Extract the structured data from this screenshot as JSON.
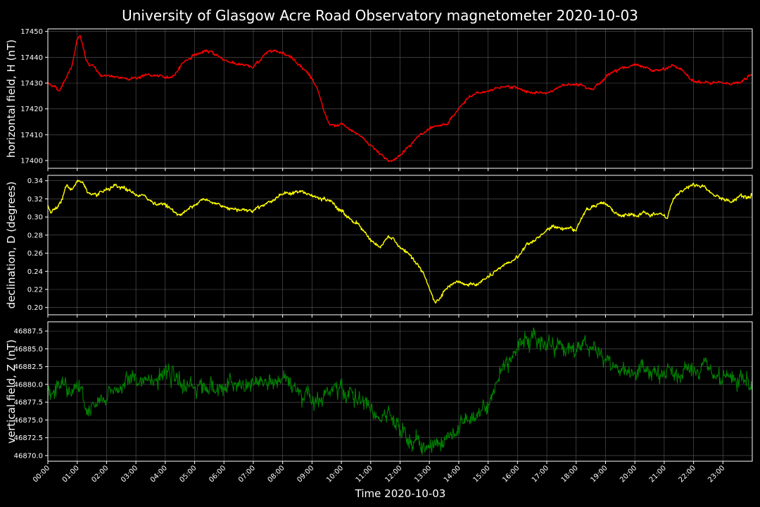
{
  "figure": {
    "title": "University of Glasgow Acre Road Observatory magnetometer 2020-10-03",
    "xlabel": "Time 2020-10-03",
    "background": "#000000",
    "grid_color": "#5a5a5a",
    "axis_color": "#ffffff"
  },
  "chart_data": [
    {
      "type": "line",
      "name": "horizontal-field",
      "ylabel": "horizontal field, H (nT)",
      "color": "#ff0000",
      "ylim": [
        17397,
        17451
      ],
      "yticks": [
        17400,
        17410,
        17420,
        17430,
        17440,
        17450
      ],
      "ytick_labels": [
        "17400",
        "17410",
        "17420",
        "17430",
        "17440",
        "17450"
      ],
      "xlim": [
        0,
        24
      ],
      "grid": true,
      "noise": 0.4,
      "x": [
        0.0,
        0.2,
        0.4,
        0.6,
        0.8,
        1.0,
        1.1,
        1.2,
        1.3,
        1.4,
        1.6,
        1.8,
        2.0,
        2.3,
        2.6,
        3.0,
        3.3,
        3.6,
        4.0,
        4.3,
        4.6,
        5.0,
        5.3,
        5.6,
        6.0,
        6.3,
        6.6,
        7.0,
        7.3,
        7.6,
        8.0,
        8.3,
        8.6,
        9.0,
        9.2,
        9.4,
        9.6,
        9.8,
        10.0,
        10.3,
        10.6,
        11.0,
        11.3,
        11.6,
        11.8,
        12.0,
        12.3,
        12.6,
        13.0,
        13.3,
        13.6,
        14.0,
        14.3,
        14.6,
        15.0,
        15.3,
        15.6,
        16.0,
        16.3,
        16.6,
        17.0,
        17.3,
        17.6,
        18.0,
        18.3,
        18.6,
        19.0,
        19.3,
        19.6,
        20.0,
        20.3,
        20.6,
        21.0,
        21.3,
        21.6,
        22.0,
        22.3,
        22.6,
        23.0,
        23.3,
        23.6,
        23.8,
        24.0
      ],
      "values": [
        17430,
        17429,
        17427,
        17432,
        17436,
        17447,
        17448,
        17444,
        17439,
        17437,
        17436,
        17433,
        17433,
        17432,
        17432,
        17432,
        17433,
        17433,
        17432,
        17433,
        17438,
        17441,
        17442,
        17442,
        17439,
        17438,
        17437,
        17436,
        17440,
        17443,
        17442,
        17440,
        17437,
        17432,
        17427,
        17419,
        17414,
        17413,
        17414,
        17412,
        17410,
        17406,
        17403,
        17400,
        17400,
        17402,
        17406,
        17409,
        17412,
        17413,
        17414,
        17420,
        17424,
        17426,
        17427,
        17428,
        17429,
        17428,
        17427,
        17426,
        17426,
        17428,
        17429,
        17430,
        17429,
        17428,
        17432,
        17435,
        17436,
        17437,
        17436,
        17435,
        17435,
        17437,
        17435,
        17431,
        17430,
        17430,
        17430,
        17430,
        17430,
        17432,
        17433
      ]
    },
    {
      "type": "line",
      "name": "declination",
      "ylabel": "declination, D (degrees)",
      "color": "#ffff00",
      "ylim": [
        0.192,
        0.346
      ],
      "yticks": [
        0.2,
        0.22,
        0.24,
        0.26,
        0.28,
        0.3,
        0.32,
        0.34
      ],
      "ytick_labels": [
        "0.20",
        "0.22",
        "0.24",
        "0.26",
        "0.28",
        "0.30",
        "0.32",
        "0.34"
      ],
      "xlim": [
        0,
        24
      ],
      "grid": true,
      "noise": 0.0015,
      "x": [
        0.0,
        0.1,
        0.3,
        0.5,
        0.6,
        0.8,
        1.0,
        1.2,
        1.4,
        1.6,
        1.8,
        2.0,
        2.3,
        2.6,
        3.0,
        3.3,
        3.6,
        4.0,
        4.3,
        4.5,
        4.8,
        5.0,
        5.3,
        5.6,
        6.0,
        6.3,
        6.6,
        7.0,
        7.3,
        7.6,
        8.0,
        8.3,
        8.6,
        9.0,
        9.3,
        9.6,
        10.0,
        10.3,
        10.6,
        10.9,
        11.1,
        11.3,
        11.6,
        11.8,
        12.0,
        12.3,
        12.6,
        12.8,
        13.0,
        13.2,
        13.4,
        13.6,
        14.0,
        14.3,
        14.6,
        15.0,
        15.3,
        15.6,
        16.0,
        16.3,
        16.6,
        17.0,
        17.3,
        17.6,
        18.0,
        18.3,
        18.6,
        19.0,
        19.3,
        19.6,
        20.0,
        20.3,
        20.6,
        21.0,
        21.1,
        21.3,
        21.6,
        22.0,
        22.3,
        22.6,
        23.0,
        23.3,
        23.6,
        23.8,
        24.0
      ],
      "values": [
        0.313,
        0.306,
        0.312,
        0.32,
        0.334,
        0.33,
        0.34,
        0.338,
        0.325,
        0.322,
        0.326,
        0.329,
        0.333,
        0.331,
        0.325,
        0.322,
        0.316,
        0.314,
        0.306,
        0.302,
        0.308,
        0.316,
        0.319,
        0.316,
        0.312,
        0.31,
        0.308,
        0.308,
        0.313,
        0.318,
        0.325,
        0.327,
        0.328,
        0.323,
        0.32,
        0.318,
        0.306,
        0.298,
        0.292,
        0.278,
        0.273,
        0.266,
        0.277,
        0.275,
        0.265,
        0.258,
        0.249,
        0.237,
        0.22,
        0.205,
        0.212,
        0.22,
        0.228,
        0.225,
        0.226,
        0.233,
        0.24,
        0.247,
        0.256,
        0.268,
        0.275,
        0.285,
        0.29,
        0.288,
        0.287,
        0.306,
        0.314,
        0.316,
        0.305,
        0.3,
        0.302,
        0.303,
        0.302,
        0.303,
        0.297,
        0.32,
        0.33,
        0.336,
        0.334,
        0.326,
        0.32,
        0.316,
        0.325,
        0.322,
        0.326
      ]
    },
    {
      "type": "line",
      "name": "vertical-field",
      "ylabel": "vertical field, Z (nT)",
      "color": "#008000",
      "ylim": [
        46869.2,
        46888.8
      ],
      "yticks": [
        46870.0,
        46872.5,
        46875.0,
        46877.5,
        46880.0,
        46882.5,
        46885.0,
        46887.5
      ],
      "ytick_labels": [
        "46870.0",
        "46872.5",
        "46875.0",
        "46877.5",
        "46880.0",
        "46882.5",
        "46885.0",
        "46887.5"
      ],
      "xlim": [
        0,
        24
      ],
      "grid": true,
      "noise": 0.9,
      "x": [
        0.0,
        0.2,
        0.4,
        0.6,
        0.8,
        1.0,
        1.2,
        1.4,
        1.6,
        1.8,
        2.0,
        2.3,
        2.6,
        3.0,
        3.3,
        3.6,
        4.0,
        4.3,
        4.6,
        5.0,
        5.3,
        5.6,
        6.0,
        6.3,
        6.6,
        7.0,
        7.3,
        7.6,
        8.0,
        8.3,
        8.6,
        9.0,
        9.3,
        9.6,
        10.0,
        10.3,
        10.6,
        11.0,
        11.3,
        11.6,
        12.0,
        12.3,
        12.6,
        13.0,
        13.3,
        13.6,
        14.0,
        14.3,
        14.6,
        15.0,
        15.3,
        15.6,
        16.0,
        16.3,
        16.6,
        17.0,
        17.3,
        17.6,
        18.0,
        18.3,
        18.6,
        19.0,
        19.3,
        19.6,
        20.0,
        20.3,
        20.6,
        21.0,
        21.3,
        21.6,
        22.0,
        22.3,
        22.6,
        23.0,
        23.3,
        23.6,
        24.0
      ],
      "values": [
        46879.3,
        46879.5,
        46879.8,
        46880.5,
        46879.5,
        46880.0,
        46878.0,
        46875.8,
        46876.8,
        46877.2,
        46878.2,
        46879.3,
        46880.2,
        46880.5,
        46880.8,
        46880.8,
        46880.9,
        46880.6,
        46880.0,
        46879.9,
        46879.9,
        46879.6,
        46879.4,
        46879.6,
        46879.7,
        46880.0,
        46880.3,
        46880.2,
        46880.2,
        46879.8,
        46879.3,
        46878.5,
        46878.5,
        46878.8,
        46879.0,
        46878.6,
        46878.0,
        46876.5,
        46875.3,
        46874.7,
        46873.5,
        46872.3,
        46871.8,
        46871.3,
        46871.7,
        46872.2,
        46874.0,
        46875.1,
        46876.0,
        46877.5,
        46880.0,
        46883.5,
        46885.5,
        46886.5,
        46886.2,
        46886.0,
        46885.8,
        46885.2,
        46885.0,
        46885.8,
        46885.6,
        46883.2,
        46882.4,
        46882.0,
        46882.0,
        46881.6,
        46881.4,
        46881.0,
        46881.4,
        46881.6,
        46881.8,
        46881.8,
        46881.2,
        46880.6,
        46880.1,
        46880.2,
        46879.8
      ]
    }
  ],
  "x_axis": {
    "xlim": [
      0,
      24
    ],
    "ticks": [
      0,
      1,
      2,
      3,
      4,
      5,
      6,
      7,
      8,
      9,
      10,
      11,
      12,
      13,
      14,
      15,
      16,
      17,
      18,
      19,
      20,
      21,
      22,
      23
    ],
    "tick_labels": [
      "00:00",
      "01:00",
      "02:00",
      "03:00",
      "04:00",
      "05:00",
      "06:00",
      "07:00",
      "08:00",
      "09:00",
      "10:00",
      "11:00",
      "12:00",
      "13:00",
      "14:00",
      "15:00",
      "16:00",
      "17:00",
      "18:00",
      "19:00",
      "20:00",
      "21:00",
      "22:00",
      "23:00"
    ]
  }
}
